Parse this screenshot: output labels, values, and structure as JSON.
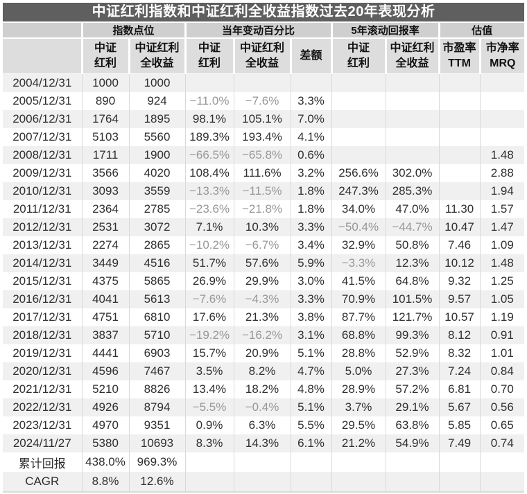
{
  "chart_data": {
    "type": "table",
    "title": "中证红利指数和中证红利全收益指数过去20年表现分析",
    "legend_position": "none",
    "column_groups": [
      {
        "label": "",
        "colspan": 1
      },
      {
        "label": "指数点位",
        "colspan": 2
      },
      {
        "label": "当年变动百分比",
        "colspan": 3
      },
      {
        "label": "5年滚动回报率",
        "colspan": 2
      },
      {
        "label": "估值",
        "colspan": 2
      }
    ],
    "columns": [
      "",
      "中证\n红利",
      "中证红利\n全收益",
      "中证\n红利",
      "中证红利\n全收益",
      "差额",
      "中证\n红利",
      "中证红利\n全收益",
      "市盈率\nTTM",
      "市净率\nMRQ"
    ],
    "rows": [
      [
        "2004/12/31",
        "1000",
        "1000",
        "",
        "",
        "",
        "",
        "",
        "",
        ""
      ],
      [
        "2005/12/31",
        "890",
        "924",
        "−11.0%",
        "−7.6%",
        "3.3%",
        "",
        "",
        "",
        ""
      ],
      [
        "2006/12/31",
        "1764",
        "1895",
        "98.1%",
        "105.1%",
        "7.0%",
        "",
        "",
        "",
        ""
      ],
      [
        "2007/12/31",
        "5103",
        "5560",
        "189.3%",
        "193.4%",
        "4.1%",
        "",
        "",
        "",
        ""
      ],
      [
        "2008/12/31",
        "1711",
        "1900",
        "−66.5%",
        "−65.8%",
        "0.6%",
        "",
        "",
        "",
        "1.48"
      ],
      [
        "2009/12/31",
        "3566",
        "4020",
        "108.4%",
        "111.6%",
        "3.2%",
        "256.6%",
        "302.0%",
        "",
        "2.88"
      ],
      [
        "2010/12/31",
        "3093",
        "3559",
        "−13.3%",
        "−11.5%",
        "1.8%",
        "247.3%",
        "285.3%",
        "",
        "1.94"
      ],
      [
        "2011/12/31",
        "2364",
        "2785",
        "−23.6%",
        "−21.8%",
        "1.8%",
        "34.0%",
        "47.0%",
        "11.30",
        "1.57"
      ],
      [
        "2012/12/31",
        "2531",
        "3072",
        "7.1%",
        "10.3%",
        "3.3%",
        "−50.4%",
        "−44.7%",
        "10.47",
        "1.47"
      ],
      [
        "2013/12/31",
        "2274",
        "2865",
        "−10.2%",
        "−6.7%",
        "3.4%",
        "32.9%",
        "50.8%",
        "7.46",
        "1.09"
      ],
      [
        "2014/12/31",
        "3449",
        "4516",
        "51.7%",
        "57.6%",
        "5.9%",
        "−3.3%",
        "12.3%",
        "10.12",
        "1.48"
      ],
      [
        "2015/12/31",
        "4375",
        "5865",
        "26.9%",
        "29.9%",
        "3.0%",
        "41.5%",
        "64.8%",
        "9.32",
        "1.25"
      ],
      [
        "2016/12/31",
        "4041",
        "5613",
        "−7.6%",
        "−4.3%",
        "3.3%",
        "70.9%",
        "101.5%",
        "9.57",
        "1.05"
      ],
      [
        "2017/12/31",
        "4751",
        "6810",
        "17.6%",
        "21.3%",
        "3.8%",
        "87.7%",
        "121.7%",
        "10.57",
        "1.19"
      ],
      [
        "2018/12/31",
        "3837",
        "5710",
        "−19.2%",
        "−16.2%",
        "3.1%",
        "68.8%",
        "99.3%",
        "8.12",
        "0.91"
      ],
      [
        "2019/12/31",
        "4441",
        "6903",
        "15.7%",
        "20.9%",
        "5.1%",
        "28.8%",
        "52.9%",
        "8.32",
        "1.01"
      ],
      [
        "2020/12/31",
        "4596",
        "7467",
        "3.5%",
        "8.2%",
        "4.7%",
        "5.0%",
        "27.3%",
        "7.24",
        "0.84"
      ],
      [
        "2021/12/31",
        "5210",
        "8826",
        "13.4%",
        "18.2%",
        "4.8%",
        "28.9%",
        "57.2%",
        "6.81",
        "0.70"
      ],
      [
        "2022/12/31",
        "4926",
        "8794",
        "−5.5%",
        "−0.4%",
        "5.1%",
        "3.7%",
        "29.1%",
        "5.67",
        "0.56"
      ],
      [
        "2023/12/31",
        "4970",
        "9351",
        "0.9%",
        "6.3%",
        "5.5%",
        "29.5%",
        "63.8%",
        "5.85",
        "0.65"
      ],
      [
        "2024/11/27",
        "5380",
        "10693",
        "8.3%",
        "14.3%",
        "6.1%",
        "21.2%",
        "54.9%",
        "7.49",
        "0.74"
      ]
    ],
    "summary_rows": [
      [
        "累计回报",
        "438.0%",
        "969.3%",
        "",
        "",
        "",
        "",
        "",
        "",
        ""
      ],
      [
        "CAGR",
        "8.8%",
        "12.6%",
        "",
        "",
        "",
        "",
        "",
        "",
        ""
      ]
    ]
  },
  "colors": {
    "title_bar_bg": "#5f5f5f",
    "title_text": "#ffffff",
    "group_header_bg": "#cfcfcf",
    "column_header_bg": "#dddddd",
    "row_alt_bg": "#f0f0f0",
    "row_bg": "#ffffff",
    "text": "#2f2f2f",
    "negative_text": "#979797",
    "grid_line": "#d9d9d9"
  }
}
